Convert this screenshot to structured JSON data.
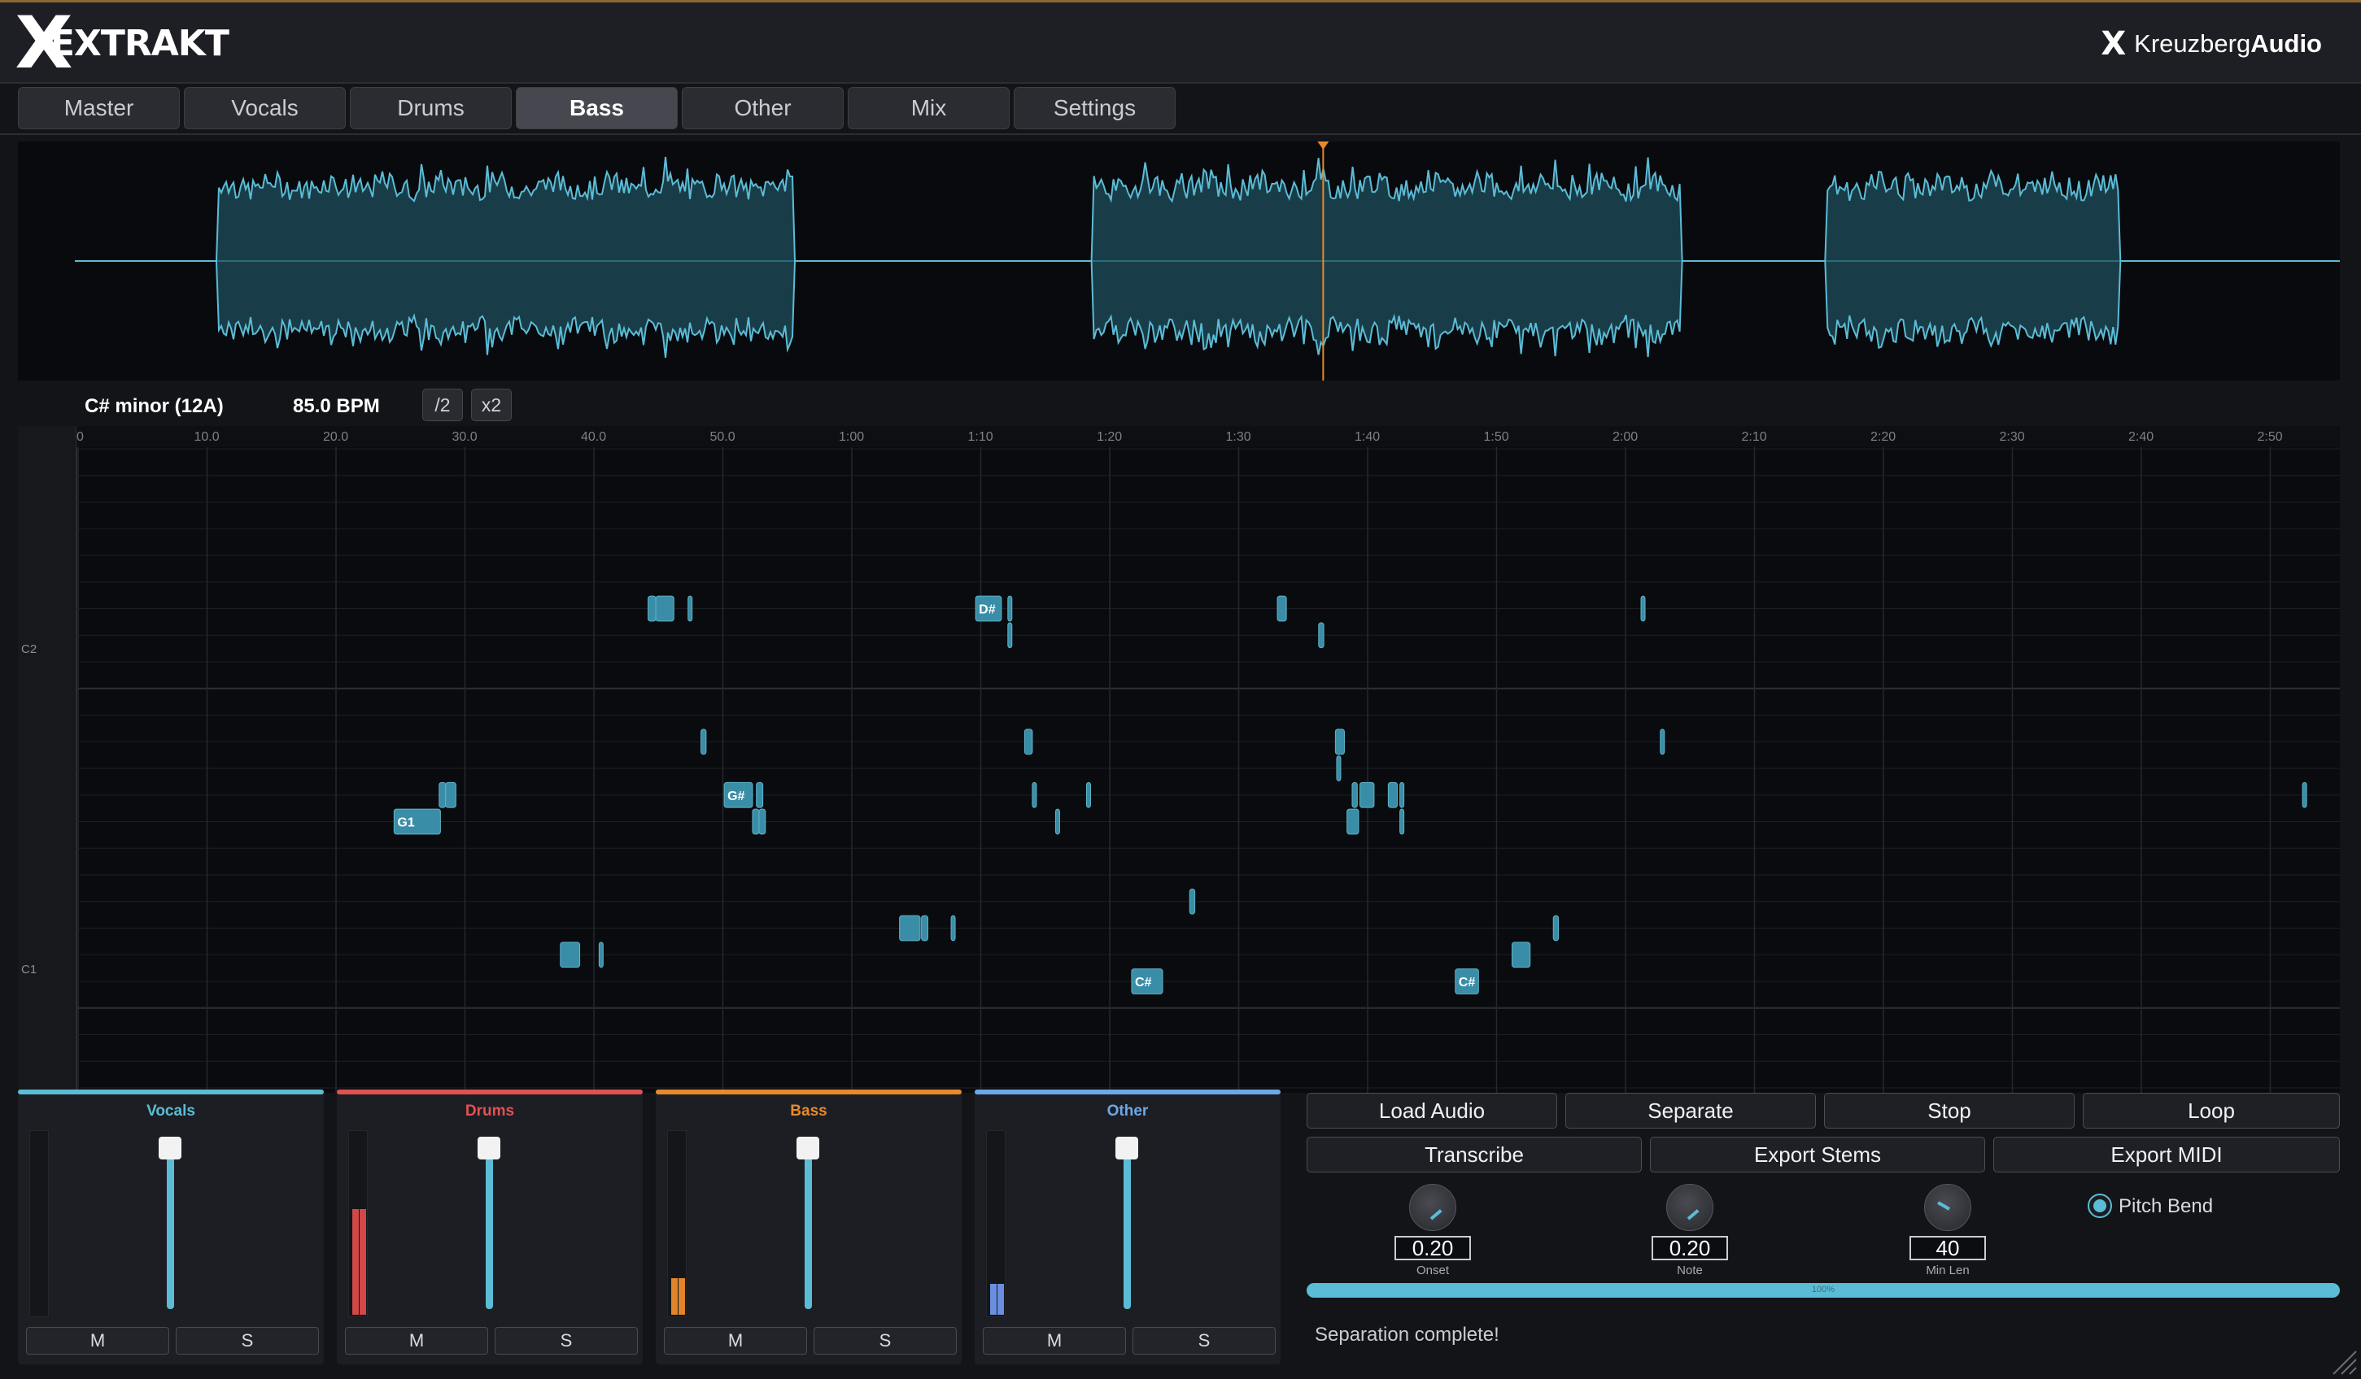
{
  "app": {
    "logo_x": "X",
    "logo_text": "EXTRAKT",
    "brand_icon": "X",
    "brand_prefix": "Kreuzberg",
    "brand_suffix": "Audio"
  },
  "tabs": [
    {
      "label": "Master",
      "active": false
    },
    {
      "label": "Vocals",
      "active": false
    },
    {
      "label": "Drums",
      "active": false
    },
    {
      "label": "Bass",
      "active": true
    },
    {
      "label": "Other",
      "active": false
    },
    {
      "label": "Mix",
      "active": false
    },
    {
      "label": "Settings",
      "active": false
    }
  ],
  "waveform": {
    "color": "#5bbcd6",
    "playhead_color": "#e8892a",
    "playhead_seconds": 97,
    "segments_seconds": [
      [
        11,
        56
      ],
      [
        79,
        125
      ],
      [
        136,
        159
      ]
    ],
    "duration_seconds": 176
  },
  "analysis": {
    "key": "C# minor (12A)",
    "bpm": "85.0 BPM",
    "half_label": "/2",
    "double_label": "x2"
  },
  "pianoroll": {
    "ruler": [
      "0",
      "10.0",
      "20.0",
      "30.0",
      "40.0",
      "50.0",
      "1:00",
      "1:10",
      "1:20",
      "1:30",
      "1:40",
      "1:50",
      "2:00",
      "2:10",
      "2:20",
      "2:30",
      "2:40",
      "2:50"
    ],
    "octave_labels": [
      "C2",
      "C1"
    ],
    "note_color": "#3a8da6",
    "notes": [
      {
        "t": 24.5,
        "d": 3.6,
        "p": 31,
        "label": "G1"
      },
      {
        "t": 28,
        "d": 0.5,
        "p": 32,
        "label": ""
      },
      {
        "t": 28.5,
        "d": 0.8,
        "p": 32,
        "label": ""
      },
      {
        "t": 37.4,
        "d": 1.5,
        "p": 26,
        "label": ""
      },
      {
        "t": 40.4,
        "d": 0.3,
        "p": 26,
        "label": ""
      },
      {
        "t": 44.2,
        "d": 0.6,
        "p": 39,
        "label": ""
      },
      {
        "t": 44.8,
        "d": 1.4,
        "p": 39,
        "label": ""
      },
      {
        "t": 47.3,
        "d": 0.3,
        "p": 39,
        "label": ""
      },
      {
        "t": 48.3,
        "d": 0.4,
        "p": 34,
        "label": ""
      },
      {
        "t": 50.1,
        "d": 2.2,
        "p": 32,
        "label": "G#"
      },
      {
        "t": 52.6,
        "d": 0.5,
        "p": 32,
        "label": ""
      },
      {
        "t": 52.3,
        "d": 0.5,
        "p": 31,
        "label": ""
      },
      {
        "t": 52.8,
        "d": 0.5,
        "p": 31,
        "label": ""
      },
      {
        "t": 63.7,
        "d": 1.6,
        "p": 27,
        "label": ""
      },
      {
        "t": 65.4,
        "d": 0.5,
        "p": 27,
        "label": ""
      },
      {
        "t": 67.7,
        "d": 0.3,
        "p": 27,
        "label": ""
      },
      {
        "t": 69.6,
        "d": 2.0,
        "p": 39,
        "label": "D#"
      },
      {
        "t": 72.1,
        "d": 0.3,
        "p": 39,
        "label": ""
      },
      {
        "t": 72.1,
        "d": 0.3,
        "p": 38,
        "label": ""
      },
      {
        "t": 73.4,
        "d": 0.6,
        "p": 34,
        "label": ""
      },
      {
        "t": 74,
        "d": 0.3,
        "p": 32,
        "label": ""
      },
      {
        "t": 75.8,
        "d": 0.3,
        "p": 31,
        "label": ""
      },
      {
        "t": 78.2,
        "d": 0.3,
        "p": 32,
        "label": ""
      },
      {
        "t": 81.7,
        "d": 2.4,
        "p": 25,
        "label": "C#"
      },
      {
        "t": 86.2,
        "d": 0.4,
        "p": 28,
        "label": ""
      },
      {
        "t": 93,
        "d": 0.7,
        "p": 39,
        "label": ""
      },
      {
        "t": 96.2,
        "d": 0.4,
        "p": 38,
        "label": ""
      },
      {
        "t": 97.5,
        "d": 0.7,
        "p": 34,
        "label": ""
      },
      {
        "t": 97.6,
        "d": 0.3,
        "p": 33,
        "label": ""
      },
      {
        "t": 98.8,
        "d": 0.4,
        "p": 32,
        "label": ""
      },
      {
        "t": 98.4,
        "d": 0.9,
        "p": 31,
        "label": ""
      },
      {
        "t": 99.4,
        "d": 1.1,
        "p": 32,
        "label": ""
      },
      {
        "t": 101.6,
        "d": 0.7,
        "p": 32,
        "label": ""
      },
      {
        "t": 102.5,
        "d": 0.3,
        "p": 32,
        "label": ""
      },
      {
        "t": 102.5,
        "d": 0.3,
        "p": 31,
        "label": ""
      },
      {
        "t": 106.8,
        "d": 1.8,
        "p": 25,
        "label": "C#"
      },
      {
        "t": 111.2,
        "d": 1.4,
        "p": 26,
        "label": ""
      },
      {
        "t": 114.4,
        "d": 0.4,
        "p": 27,
        "label": ""
      },
      {
        "t": 121.2,
        "d": 0.3,
        "p": 39,
        "label": ""
      },
      {
        "t": 122.7,
        "d": 0.3,
        "p": 34,
        "label": ""
      },
      {
        "t": 172.5,
        "d": 0.3,
        "p": 32,
        "label": ""
      }
    ]
  },
  "mixer": [
    {
      "name": "Vocals",
      "color": "#5bbcd6",
      "level": 0.0,
      "fader": 1.0,
      "mute": "M",
      "solo": "S",
      "meter_color": "#5bbcd6"
    },
    {
      "name": "Drums",
      "color": "#e05252",
      "level": 0.58,
      "fader": 1.0,
      "mute": "M",
      "solo": "S",
      "meter_color": "#d04848"
    },
    {
      "name": "Bass",
      "color": "#e8892a",
      "level": 0.2,
      "fader": 1.0,
      "mute": "M",
      "solo": "S",
      "meter_color": "#e0852a"
    },
    {
      "name": "Other",
      "color": "#6aa9e8",
      "level": 0.17,
      "fader": 1.0,
      "mute": "M",
      "solo": "S",
      "meter_color": "#6a8fe0"
    }
  ],
  "controls": {
    "load": "Load Audio",
    "separate": "Separate",
    "stop": "Stop",
    "loop": "Loop",
    "transcribe": "Transcribe",
    "export_stems": "Export Stems",
    "export_midi": "Export MIDI",
    "onset_value": "0.20",
    "onset_label": "Onset",
    "note_value": "0.20",
    "note_label": "Note",
    "minlen_value": "40",
    "minlen_label": "Min Len",
    "pitch_bend": "Pitch Bend",
    "progress_text": "100%",
    "progress": 1.0,
    "status": "Separation complete!"
  }
}
